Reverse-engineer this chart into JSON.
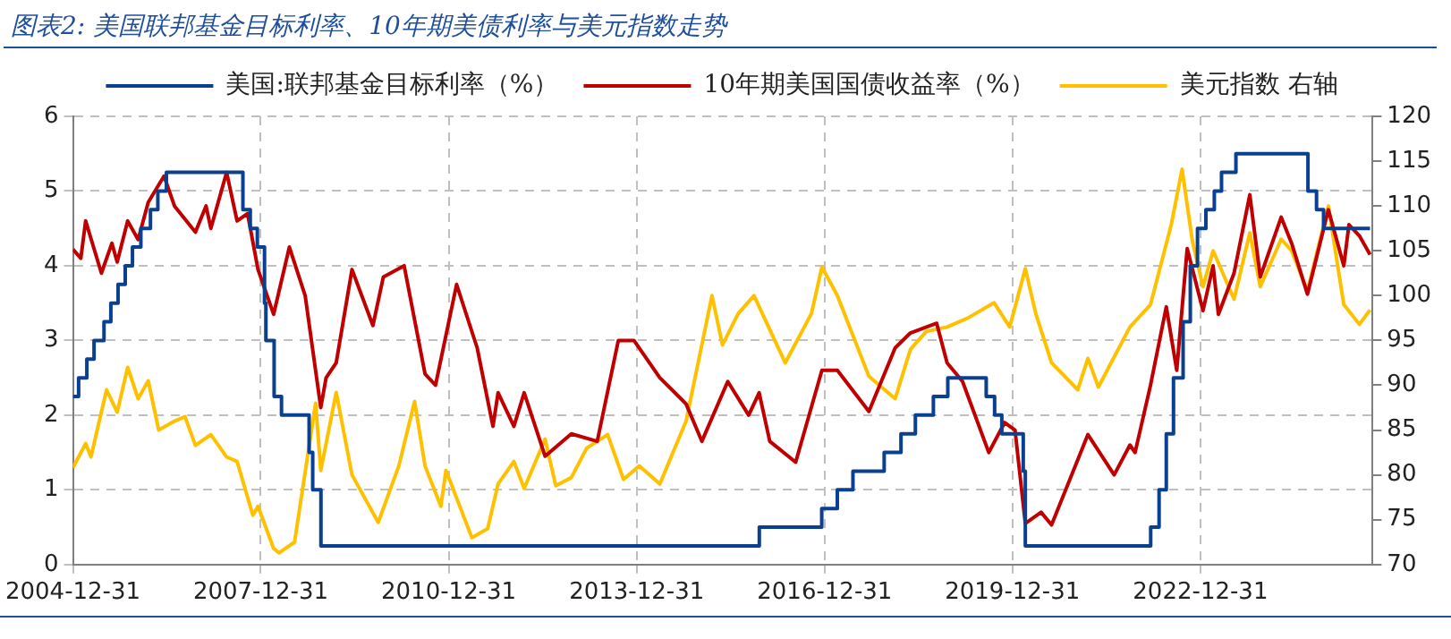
{
  "chart_data": {
    "type": "line",
    "title": "图表2:  美国联邦基金目标利率、10年期美债利率与美元指数走势",
    "xlim": [
      "2004-12-31",
      "2025-09-30"
    ],
    "xticks": [
      "2004-12-31",
      "2007-12-31",
      "2010-12-31",
      "2013-12-31",
      "2016-12-31",
      "2019-12-31",
      "2022-12-31"
    ],
    "ylim": [
      0,
      6
    ],
    "yticks": [
      0,
      1,
      2,
      3,
      4,
      5,
      6
    ],
    "y2lim": [
      70,
      120
    ],
    "y2ticks": [
      70,
      75,
      80,
      85,
      90,
      95,
      100,
      105,
      110,
      115,
      120
    ],
    "grid": true,
    "legend": "top",
    "marker": "none",
    "line_style": "solid",
    "series": [
      {
        "name": "美国:联邦基金目标利率（%）",
        "type": "step",
        "color": "#0b3f8f",
        "x": [
          "2004-12-31",
          "2005-02-02",
          "2005-03-22",
          "2005-05-03",
          "2005-06-30",
          "2005-08-09",
          "2005-09-20",
          "2005-11-01",
          "2005-12-13",
          "2006-01-31",
          "2006-03-28",
          "2006-05-10",
          "2006-06-29",
          "2007-09-18",
          "2007-10-31",
          "2007-12-11",
          "2008-01-22",
          "2008-01-30",
          "2008-03-18",
          "2008-04-30",
          "2008-10-08",
          "2008-10-29",
          "2008-12-16",
          "2015-12-16",
          "2016-12-14",
          "2017-03-15",
          "2017-06-14",
          "2017-12-13",
          "2018-03-21",
          "2018-06-13",
          "2018-09-26",
          "2018-12-19",
          "2019-07-31",
          "2019-09-18",
          "2019-10-30",
          "2020-03-03",
          "2020-03-15",
          "2022-03-16",
          "2022-05-04",
          "2022-06-15",
          "2022-07-27",
          "2022-09-21",
          "2022-11-02",
          "2022-12-14",
          "2023-02-01",
          "2023-03-22",
          "2023-05-03",
          "2023-07-26",
          "2024-09-18",
          "2024-11-07",
          "2024-12-18",
          "2025-09-15"
        ],
        "values": [
          2.25,
          2.5,
          2.75,
          3.0,
          3.25,
          3.5,
          3.75,
          4.0,
          4.25,
          4.5,
          4.75,
          5.0,
          5.25,
          4.75,
          4.5,
          4.25,
          3.5,
          3.0,
          2.25,
          2.0,
          1.5,
          1.0,
          0.25,
          0.5,
          0.75,
          1.0,
          1.25,
          1.5,
          1.75,
          2.0,
          2.25,
          2.5,
          2.25,
          2.0,
          1.75,
          1.25,
          0.25,
          0.5,
          1.0,
          1.75,
          2.5,
          3.25,
          4.0,
          4.5,
          4.75,
          5.0,
          5.25,
          5.5,
          5.0,
          4.75,
          4.5,
          4.5
        ]
      },
      {
        "name": "10年期美国国债收益率（%）",
        "color": "#c00000",
        "x": [
          "2004-12-31",
          "2005-02",
          "2005-03",
          "2005-06",
          "2005-08",
          "2005-09",
          "2005-11",
          "2006-01",
          "2006-03",
          "2006-06",
          "2006-08",
          "2006-12",
          "2007-02",
          "2007-03",
          "2007-06",
          "2007-08",
          "2007-10",
          "2007-12",
          "2008-03",
          "2008-06",
          "2008-09",
          "2008-12",
          "2009-01",
          "2009-03",
          "2009-06",
          "2009-10",
          "2009-12",
          "2010-04",
          "2010-08",
          "2010-10",
          "2011-02",
          "2011-06",
          "2011-09",
          "2011-10",
          "2012-01",
          "2012-03",
          "2012-07",
          "2012-12",
          "2013-05",
          "2013-09",
          "2013-12",
          "2014-05",
          "2014-10",
          "2015-01",
          "2015-06",
          "2015-10",
          "2015-12",
          "2016-02",
          "2016-07",
          "2016-12",
          "2017-03",
          "2017-09",
          "2018-02",
          "2018-05",
          "2018-10",
          "2018-12",
          "2019-03",
          "2019-08",
          "2019-11",
          "2020-01",
          "2020-03",
          "2020-06",
          "2020-08",
          "2021-03",
          "2021-08",
          "2021-11",
          "2021-12",
          "2022-03",
          "2022-06",
          "2022-08",
          "2022-10",
          "2023-01",
          "2023-03",
          "2023-04",
          "2023-07",
          "2023-10",
          "2023-12",
          "2024-04",
          "2024-06",
          "2024-09",
          "2025-01",
          "2025-04",
          "2025-05",
          "2025-07",
          "2025-09"
        ],
        "values": [
          4.22,
          4.1,
          4.6,
          3.9,
          4.3,
          4.05,
          4.6,
          4.35,
          4.85,
          5.2,
          4.8,
          4.45,
          4.8,
          4.5,
          5.25,
          4.6,
          4.7,
          3.95,
          3.35,
          4.25,
          3.6,
          2.1,
          2.5,
          2.7,
          3.95,
          3.2,
          3.85,
          4.0,
          2.55,
          2.4,
          3.75,
          2.9,
          1.85,
          2.3,
          1.85,
          2.3,
          1.45,
          1.75,
          1.65,
          3.0,
          3.0,
          2.5,
          2.15,
          1.65,
          2.45,
          2.0,
          2.3,
          1.65,
          1.37,
          2.6,
          2.6,
          2.05,
          2.9,
          3.1,
          3.23,
          2.7,
          2.45,
          1.5,
          1.9,
          1.8,
          0.55,
          0.7,
          0.53,
          1.74,
          1.2,
          1.6,
          1.5,
          2.4,
          3.45,
          2.6,
          4.23,
          3.4,
          4.0,
          3.35,
          3.9,
          4.95,
          3.85,
          4.65,
          4.3,
          3.62,
          4.75,
          4.0,
          4.55,
          4.4,
          4.15
        ]
      },
      {
        "name": "美元指数 右轴",
        "axis": "y2",
        "color": "#ffc000",
        "x": [
          "2004-12-31",
          "2005-03",
          "2005-04",
          "2005-07",
          "2005-09",
          "2005-11",
          "2006-01",
          "2006-03",
          "2006-05",
          "2006-08",
          "2006-10",
          "2006-12",
          "2007-03",
          "2007-06",
          "2007-08",
          "2007-11",
          "2007-12",
          "2008-03",
          "2008-04",
          "2008-07",
          "2008-11",
          "2008-12",
          "2009-03",
          "2009-06",
          "2009-11",
          "2010-03",
          "2010-06",
          "2010-08",
          "2010-11",
          "2010-12",
          "2011-05",
          "2011-08",
          "2011-10",
          "2012-01",
          "2012-03",
          "2012-07",
          "2012-09",
          "2012-12",
          "2013-03",
          "2013-07",
          "2013-10",
          "2014-01",
          "2014-05",
          "2014-10",
          "2015-03",
          "2015-05",
          "2015-08",
          "2015-11",
          "2016-05",
          "2016-10",
          "2016-12",
          "2017-03",
          "2017-09",
          "2018-02",
          "2018-05",
          "2018-08",
          "2018-12",
          "2019-04",
          "2019-09",
          "2019-12",
          "2020-03",
          "2020-05",
          "2020-08",
          "2021-01",
          "2021-03",
          "2021-05",
          "2021-11",
          "2022-03",
          "2022-07",
          "2022-09",
          "2022-11",
          "2023-01",
          "2023-03",
          "2023-07",
          "2023-10",
          "2023-12",
          "2024-04",
          "2024-06",
          "2024-09",
          "2025-01",
          "2025-04",
          "2025-07",
          "2025-09"
        ],
        "values": [
          80.8,
          83.5,
          82,
          89.5,
          87,
          92,
          88.5,
          90.5,
          85,
          86,
          86.5,
          83.3,
          84.5,
          82,
          81.5,
          75.5,
          76.5,
          71.8,
          71.3,
          72.5,
          88,
          80.5,
          89.2,
          80,
          74.7,
          81,
          88.2,
          81,
          76.5,
          80.5,
          73,
          74,
          79,
          81.5,
          78.5,
          84,
          78.8,
          79.7,
          83,
          84.5,
          79.5,
          81,
          79,
          86,
          100,
          94.5,
          98,
          100,
          92.5,
          98,
          103.2,
          100,
          91,
          88.5,
          94,
          96,
          96.5,
          97.5,
          99.2,
          96.5,
          103,
          98,
          92.5,
          89.5,
          93,
          89.8,
          96.5,
          99,
          108,
          114.1,
          106,
          101,
          105,
          99.6,
          107,
          101,
          106.3,
          105,
          100.5,
          110,
          99,
          96.8,
          98.4
        ]
      }
    ]
  }
}
